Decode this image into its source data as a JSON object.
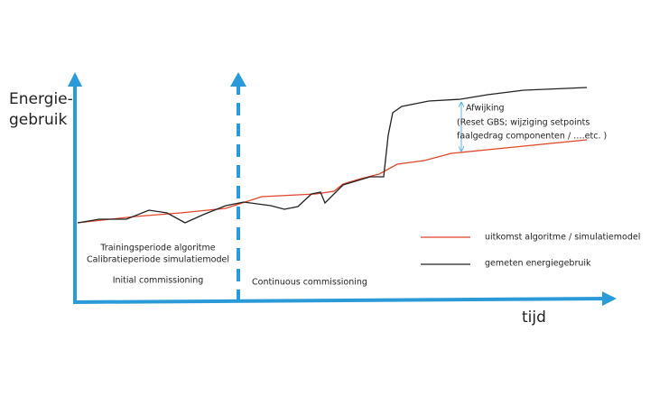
{
  "y_axis_label": [
    "Energie-",
    "gebruik"
  ],
  "x_axis_label": "tijd",
  "annotation": [
    "Afwijking",
    "(Reset GBS; wijziging setpoints",
    "faalgedrag componenten / ….etc. )"
  ],
  "legend": [
    {
      "label": "uitkomst algoritme / simulatiemodel"
    },
    {
      "label": "gemeten energiegebruik"
    }
  ],
  "phases": [
    {
      "lines": [
        "Trainingsperiode algoritme",
        "Calibratieperiode simulatiemodel"
      ],
      "label": "Initial commissioning"
    },
    {
      "label": "Continuous commissioning"
    }
  ]
}
